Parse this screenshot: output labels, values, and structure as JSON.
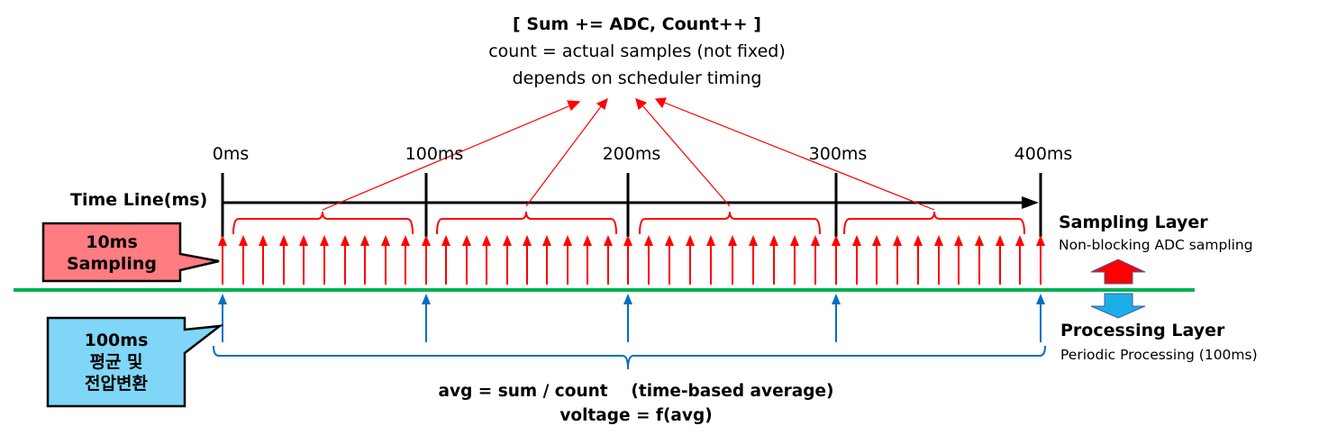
{
  "header": {
    "line1": "[ Sum += ADC, Count++ ]",
    "line2": "count = actual samples (not fixed)",
    "line3": "depends on scheduler timing"
  },
  "timeline": {
    "axis_label": "Time Line(ms)",
    "ticks": [
      "0ms",
      "100ms",
      "200ms",
      "300ms",
      "400ms"
    ],
    "sampling_interval_ms": 10,
    "processing_interval_ms": 100
  },
  "callouts": {
    "sampling": {
      "line1": "10ms",
      "line2": "Sampling",
      "color": "#FF7C80"
    },
    "processing": {
      "line1": "100ms",
      "line2": "평균 및",
      "line3": "전압변환",
      "color": "#7FD6F6"
    }
  },
  "layers": {
    "sampling": {
      "title": "Sampling Layer",
      "subtitle": "Non-blocking ADC sampling"
    },
    "processing": {
      "title": "Processing Layer",
      "subtitle": "Periodic Processing (100ms)"
    }
  },
  "formulas": {
    "line1": "avg = sum / count    (time-based average)",
    "line2": "voltage = f(avg)"
  },
  "colors": {
    "sampling_arrow": "#FF0000",
    "processing_arrow": "#0070C0",
    "layer_divider": "#00B050",
    "axis": "#000000",
    "up_arrow_fill": "#FF0000",
    "down_arrow_fill": "#1AAFE6"
  }
}
